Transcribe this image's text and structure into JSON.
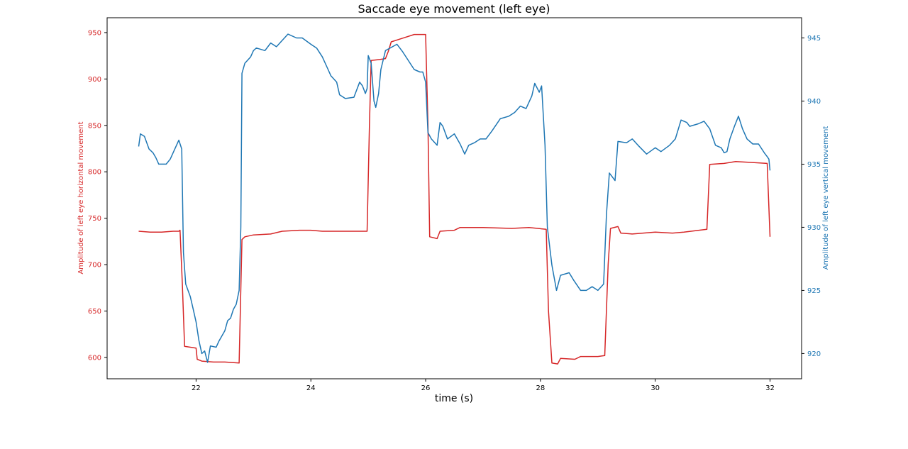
{
  "chart_data": {
    "type": "line",
    "title": "Saccade eye movement (left eye)",
    "xlabel": "time (s)",
    "xlim": [
      20.45,
      32.55
    ],
    "xticks": [
      22,
      24,
      26,
      28,
      30,
      32
    ],
    "axes": [
      {
        "side": "left",
        "ylabel": "Amplitude of left eye horizontal movement",
        "color": "#d62728",
        "ylim": [
          577,
          966
        ],
        "yticks": [
          600,
          650,
          700,
          750,
          800,
          850,
          900,
          950
        ]
      },
      {
        "side": "right",
        "ylabel": "Amplitude of left eye vertical movement",
        "color": "#1f77b4",
        "ylim": [
          918,
          946.6
        ],
        "yticks": [
          920,
          925,
          930,
          935,
          940,
          945
        ]
      }
    ],
    "series": [
      {
        "axis": "left",
        "color": "#d62728",
        "points": [
          [
            21.0,
            736
          ],
          [
            21.2,
            735
          ],
          [
            21.4,
            735
          ],
          [
            21.6,
            736
          ],
          [
            21.7,
            736
          ],
          [
            21.72,
            737
          ],
          [
            21.76,
            680
          ],
          [
            21.8,
            612
          ],
          [
            22.0,
            610
          ],
          [
            22.02,
            598
          ],
          [
            22.1,
            596
          ],
          [
            22.3,
            595
          ],
          [
            22.5,
            595
          ],
          [
            22.75,
            594
          ],
          [
            22.8,
            727
          ],
          [
            22.85,
            730
          ],
          [
            23.0,
            732
          ],
          [
            23.3,
            733
          ],
          [
            23.5,
            736
          ],
          [
            23.8,
            737
          ],
          [
            24.0,
            737
          ],
          [
            24.2,
            736
          ],
          [
            24.5,
            736
          ],
          [
            24.98,
            736
          ],
          [
            25.02,
            850
          ],
          [
            25.05,
            920
          ],
          [
            25.2,
            921
          ],
          [
            25.3,
            922
          ],
          [
            25.35,
            930
          ],
          [
            25.4,
            940
          ],
          [
            25.6,
            944
          ],
          [
            25.8,
            948
          ],
          [
            26.0,
            948
          ],
          [
            26.04,
            850
          ],
          [
            26.07,
            730
          ],
          [
            26.2,
            728
          ],
          [
            26.25,
            736
          ],
          [
            26.5,
            737
          ],
          [
            26.6,
            740
          ],
          [
            27.0,
            740
          ],
          [
            27.5,
            739
          ],
          [
            27.8,
            740
          ],
          [
            28.1,
            738
          ],
          [
            28.14,
            650
          ],
          [
            28.2,
            594
          ],
          [
            28.3,
            593
          ],
          [
            28.35,
            599
          ],
          [
            28.6,
            598
          ],
          [
            28.7,
            601
          ],
          [
            29.0,
            601
          ],
          [
            29.12,
            602
          ],
          [
            29.18,
            700
          ],
          [
            29.22,
            739
          ],
          [
            29.35,
            741
          ],
          [
            29.4,
            734
          ],
          [
            29.6,
            733
          ],
          [
            30.0,
            735
          ],
          [
            30.3,
            734
          ],
          [
            30.5,
            735
          ],
          [
            30.9,
            738
          ],
          [
            30.95,
            808
          ],
          [
            31.2,
            809
          ],
          [
            31.4,
            811
          ],
          [
            31.7,
            810
          ],
          [
            31.95,
            809
          ],
          [
            32.0,
            730
          ]
        ]
      },
      {
        "axis": "right",
        "color": "#1f77b4",
        "points": [
          [
            21.0,
            936.4
          ],
          [
            21.03,
            937.4
          ],
          [
            21.1,
            937.2
          ],
          [
            21.18,
            936.2
          ],
          [
            21.25,
            935.9
          ],
          [
            21.3,
            935.5
          ],
          [
            21.35,
            935.0
          ],
          [
            21.48,
            935.0
          ],
          [
            21.55,
            935.4
          ],
          [
            21.6,
            935.9
          ],
          [
            21.7,
            936.9
          ],
          [
            21.75,
            936.2
          ],
          [
            21.78,
            928.0
          ],
          [
            21.82,
            925.5
          ],
          [
            21.9,
            924.5
          ],
          [
            21.95,
            923.5
          ],
          [
            22.0,
            922.5
          ],
          [
            22.05,
            921.0
          ],
          [
            22.1,
            920.0
          ],
          [
            22.15,
            920.2
          ],
          [
            22.2,
            919.3
          ],
          [
            22.25,
            920.6
          ],
          [
            22.35,
            920.5
          ],
          [
            22.4,
            921.0
          ],
          [
            22.5,
            921.8
          ],
          [
            22.55,
            922.6
          ],
          [
            22.6,
            922.8
          ],
          [
            22.65,
            923.5
          ],
          [
            22.7,
            923.9
          ],
          [
            22.75,
            925.0
          ],
          [
            22.78,
            930.0
          ],
          [
            22.8,
            942.2
          ],
          [
            22.85,
            943.0
          ],
          [
            22.95,
            943.5
          ],
          [
            23.0,
            944.0
          ],
          [
            23.05,
            944.2
          ],
          [
            23.2,
            944.0
          ],
          [
            23.3,
            944.6
          ],
          [
            23.4,
            944.3
          ],
          [
            23.5,
            944.8
          ],
          [
            23.6,
            945.3
          ],
          [
            23.75,
            945.0
          ],
          [
            23.85,
            945.0
          ],
          [
            24.0,
            944.5
          ],
          [
            24.1,
            944.2
          ],
          [
            24.2,
            943.5
          ],
          [
            24.3,
            942.5
          ],
          [
            24.35,
            942.0
          ],
          [
            24.45,
            941.5
          ],
          [
            24.5,
            940.5
          ],
          [
            24.6,
            940.2
          ],
          [
            24.75,
            940.3
          ],
          [
            24.85,
            941.5
          ],
          [
            24.9,
            941.2
          ],
          [
            24.95,
            940.6
          ],
          [
            24.98,
            941.0
          ],
          [
            25.0,
            943.6
          ],
          [
            25.05,
            943.0
          ],
          [
            25.1,
            940.0
          ],
          [
            25.13,
            939.5
          ],
          [
            25.18,
            940.6
          ],
          [
            25.22,
            942.5
          ],
          [
            25.3,
            944.0
          ],
          [
            25.5,
            944.5
          ],
          [
            25.6,
            943.9
          ],
          [
            25.8,
            942.5
          ],
          [
            25.9,
            942.3
          ],
          [
            25.95,
            942.3
          ],
          [
            26.0,
            941.5
          ],
          [
            26.04,
            937.5
          ],
          [
            26.1,
            937.0
          ],
          [
            26.2,
            936.5
          ],
          [
            26.25,
            938.3
          ],
          [
            26.3,
            938.0
          ],
          [
            26.38,
            937.0
          ],
          [
            26.5,
            937.4
          ],
          [
            26.6,
            936.6
          ],
          [
            26.68,
            935.8
          ],
          [
            26.75,
            936.5
          ],
          [
            26.85,
            936.7
          ],
          [
            26.95,
            937.0
          ],
          [
            27.05,
            937.0
          ],
          [
            27.15,
            937.6
          ],
          [
            27.3,
            938.6
          ],
          [
            27.45,
            938.8
          ],
          [
            27.55,
            939.1
          ],
          [
            27.65,
            939.6
          ],
          [
            27.75,
            939.4
          ],
          [
            27.85,
            940.4
          ],
          [
            27.9,
            941.4
          ],
          [
            27.98,
            940.7
          ],
          [
            28.02,
            941.2
          ],
          [
            28.08,
            936.5
          ],
          [
            28.12,
            930.0
          ],
          [
            28.2,
            927.0
          ],
          [
            28.28,
            925.0
          ],
          [
            28.35,
            926.2
          ],
          [
            28.5,
            926.4
          ],
          [
            28.58,
            925.8
          ],
          [
            28.7,
            925.0
          ],
          [
            28.8,
            925.0
          ],
          [
            28.9,
            925.3
          ],
          [
            29.0,
            925.0
          ],
          [
            29.1,
            925.5
          ],
          [
            29.15,
            931.0
          ],
          [
            29.2,
            934.3
          ],
          [
            29.25,
            934.0
          ],
          [
            29.3,
            933.7
          ],
          [
            29.35,
            936.8
          ],
          [
            29.5,
            936.7
          ],
          [
            29.6,
            937.0
          ],
          [
            29.7,
            936.5
          ],
          [
            29.85,
            935.8
          ],
          [
            30.0,
            936.3
          ],
          [
            30.1,
            936.0
          ],
          [
            30.25,
            936.5
          ],
          [
            30.35,
            937.0
          ],
          [
            30.45,
            938.5
          ],
          [
            30.55,
            938.3
          ],
          [
            30.6,
            938.0
          ],
          [
            30.75,
            938.2
          ],
          [
            30.85,
            938.4
          ],
          [
            30.95,
            937.8
          ],
          [
            31.05,
            936.5
          ],
          [
            31.15,
            936.3
          ],
          [
            31.2,
            935.9
          ],
          [
            31.25,
            936.0
          ],
          [
            31.3,
            937.0
          ],
          [
            31.38,
            938.0
          ],
          [
            31.45,
            938.8
          ],
          [
            31.52,
            937.8
          ],
          [
            31.6,
            937.0
          ],
          [
            31.7,
            936.6
          ],
          [
            31.8,
            936.6
          ],
          [
            31.9,
            935.9
          ],
          [
            31.95,
            935.6
          ],
          [
            31.98,
            935.4
          ],
          [
            32.0,
            934.5
          ]
        ]
      }
    ]
  }
}
